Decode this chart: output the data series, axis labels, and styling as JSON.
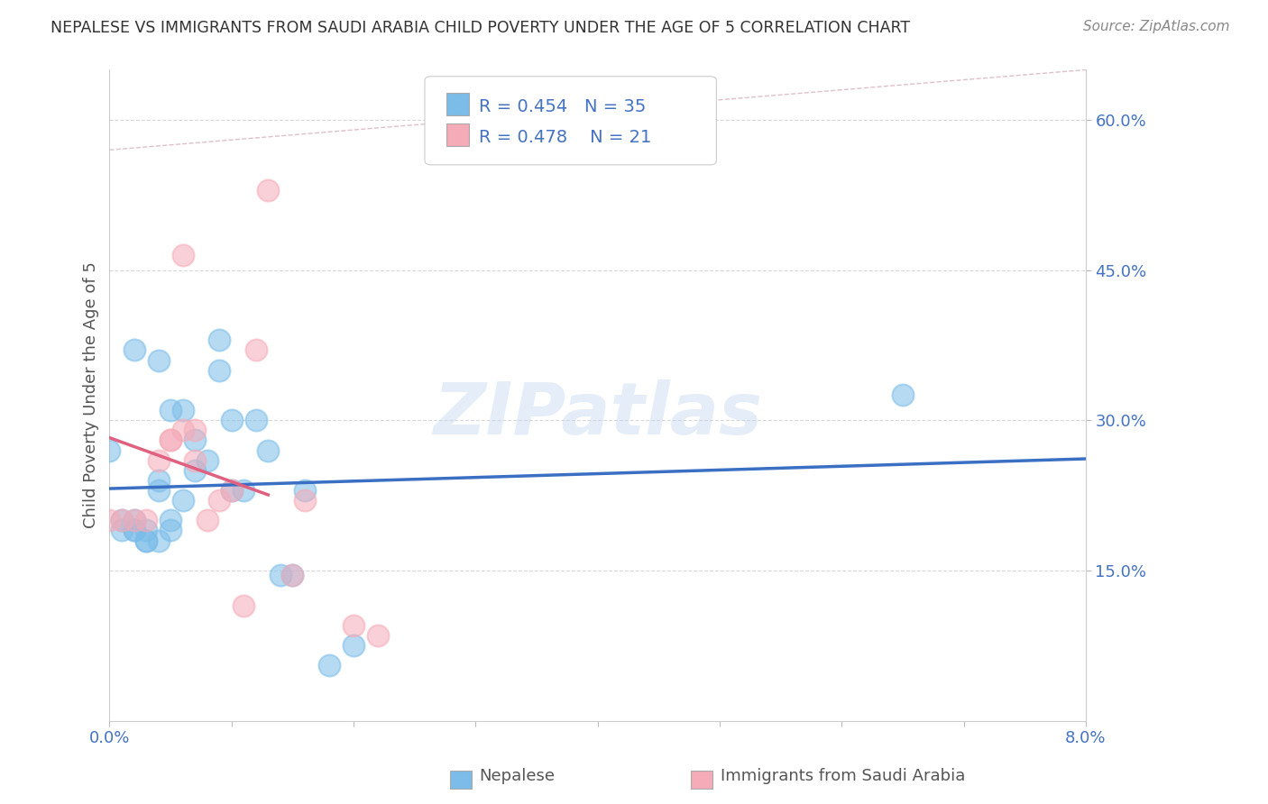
{
  "title": "NEPALESE VS IMMIGRANTS FROM SAUDI ARABIA CHILD POVERTY UNDER THE AGE OF 5 CORRELATION CHART",
  "source": "Source: ZipAtlas.com",
  "ylabel": "Child Poverty Under the Age of 5",
  "legend_labels": [
    "Nepalese",
    "Immigrants from Saudi Arabia"
  ],
  "R_nepalese": 0.454,
  "N_nepalese": 35,
  "R_saudi": 0.478,
  "N_saudi": 21,
  "blue_color": "#7bbde8",
  "pink_color": "#f5abb8",
  "blue_line_color": "#3a6fc4",
  "pink_line_color": "#e06080",
  "watermark": "ZIPatlas",
  "xlim": [
    0.0,
    0.08
  ],
  "ylim": [
    0.0,
    0.65
  ],
  "nepalese_x": [
    0.0,
    0.001,
    0.001,
    0.002,
    0.002,
    0.002,
    0.003,
    0.003,
    0.003,
    0.004,
    0.004,
    0.004,
    0.005,
    0.005,
    0.005,
    0.006,
    0.006,
    0.007,
    0.007,
    0.008,
    0.009,
    0.009,
    0.01,
    0.01,
    0.011,
    0.012,
    0.013,
    0.014,
    0.015,
    0.016,
    0.018,
    0.02,
    0.004,
    0.002,
    0.065
  ],
  "nepalese_y": [
    0.27,
    0.2,
    0.19,
    0.2,
    0.19,
    0.19,
    0.19,
    0.18,
    0.18,
    0.18,
    0.24,
    0.23,
    0.2,
    0.19,
    0.31,
    0.31,
    0.22,
    0.25,
    0.28,
    0.26,
    0.35,
    0.38,
    0.3,
    0.23,
    0.23,
    0.3,
    0.27,
    0.145,
    0.145,
    0.23,
    0.055,
    0.075,
    0.36,
    0.37,
    0.325
  ],
  "saudi_x": [
    0.0,
    0.001,
    0.002,
    0.003,
    0.004,
    0.005,
    0.005,
    0.006,
    0.006,
    0.007,
    0.007,
    0.008,
    0.009,
    0.01,
    0.011,
    0.012,
    0.013,
    0.015,
    0.016,
    0.02,
    0.022
  ],
  "saudi_y": [
    0.2,
    0.2,
    0.2,
    0.2,
    0.26,
    0.28,
    0.28,
    0.465,
    0.29,
    0.29,
    0.26,
    0.2,
    0.22,
    0.23,
    0.115,
    0.37,
    0.53,
    0.145,
    0.22,
    0.095,
    0.085
  ],
  "bg_color": "#ffffff",
  "title_color": "#333333",
  "axis_label_color": "#555555",
  "right_axis_color": "#4472c4",
  "bottom_axis_color": "#4472c4",
  "grid_color": "#d8d8d8"
}
